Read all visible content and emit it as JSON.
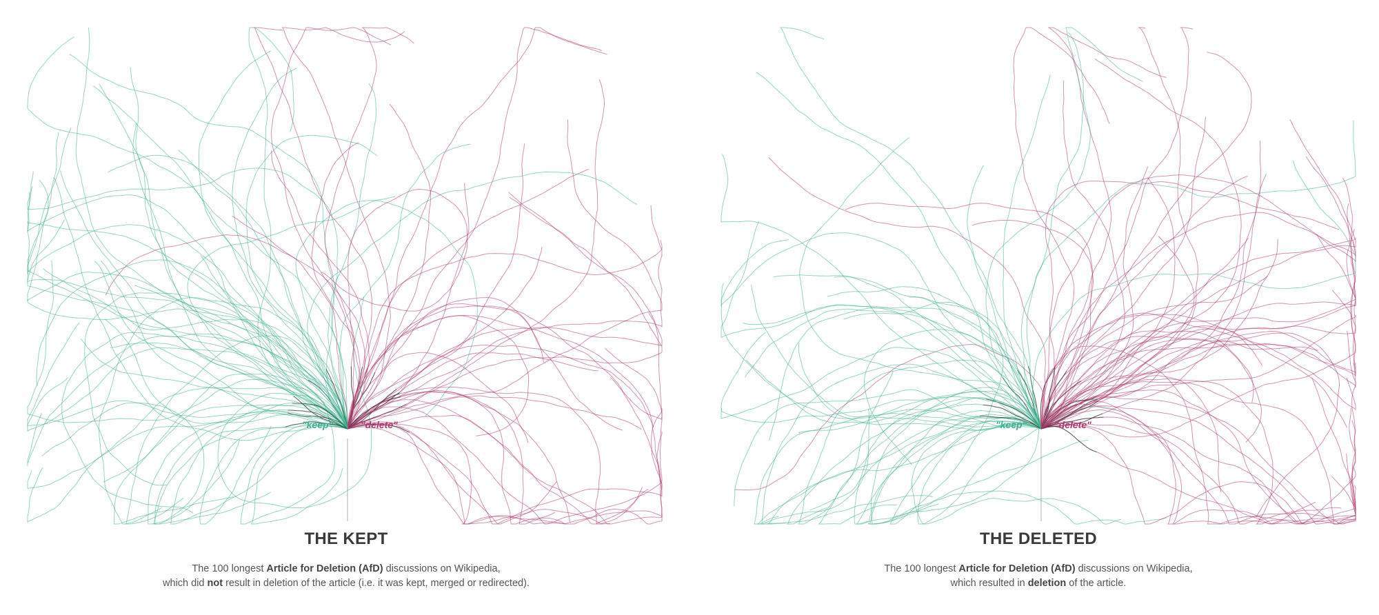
{
  "colors": {
    "keep": "#3fb28e",
    "delete": "#b03a6e",
    "stem": "#333333",
    "axis": "#bdbdbd"
  },
  "panels": [
    {
      "id": "kept",
      "title": "THE KEPT",
      "keep_label": "\"keep\"",
      "delete_label": "\"delete\"",
      "caption": {
        "line1_a": "The 100 longest ",
        "line1_b": "Article for Deletion (AfD)",
        "line1_c": " discussions on Wikipedia,",
        "line2_a": "which did ",
        "line2_b": "not",
        "line2_c": " result in deletion of the  article (i.e. it was kept, merged or redirected)."
      },
      "keep_share": 0.62
    },
    {
      "id": "deleted",
      "title": "THE DELETED",
      "keep_label": "\"keep\"",
      "delete_label": "\"delete\"",
      "caption": {
        "line1_a": "The 100 longest ",
        "line1_b": "Article for Deletion (AfD)",
        "line1_c": " discussions on Wikipedia,",
        "line2_a": "which resulted in ",
        "line2_b": "deletion",
        "line2_c": " of the article."
      },
      "keep_share": 0.4
    }
  ]
}
